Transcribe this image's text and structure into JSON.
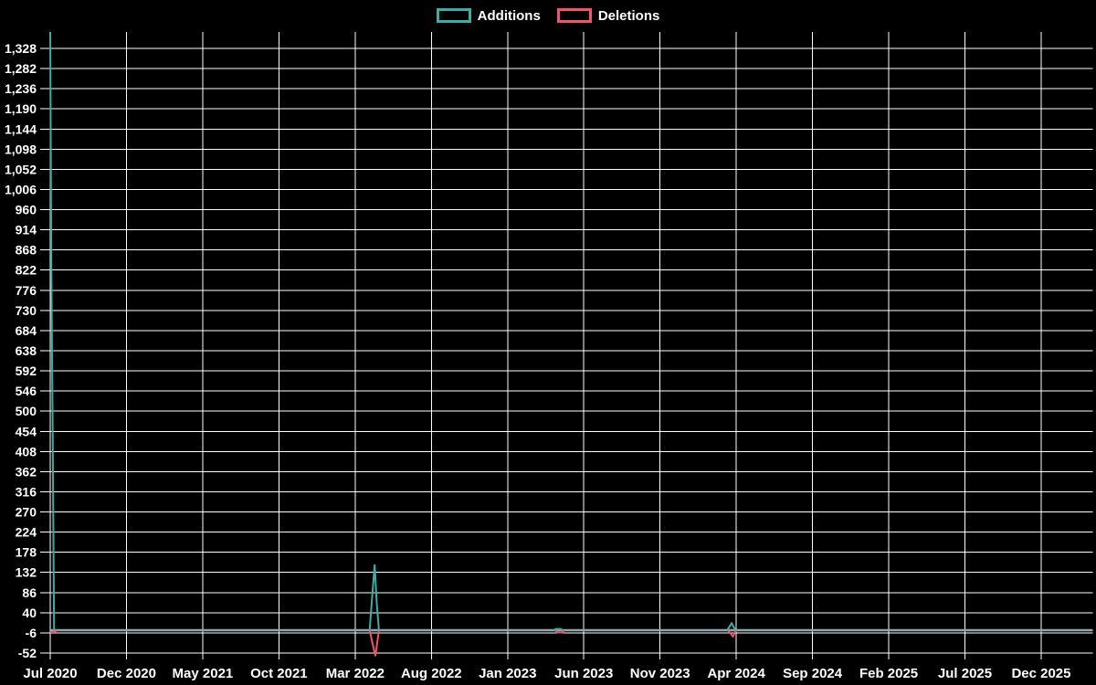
{
  "legend": {
    "entries": [
      {
        "label": "Additions",
        "color": "#3bada9"
      },
      {
        "label": "Deletions",
        "color": "#ee5569"
      }
    ]
  },
  "chart_data": {
    "type": "line",
    "title": "",
    "xlabel": "",
    "ylabel": "",
    "background_color": "#000000",
    "grid": true,
    "grid_color": "#ffffff",
    "text_color": "#ffffff",
    "legend_position": "top-center",
    "x_axis": {
      "unit": "months since Jul 2020",
      "tick_interval_months": 5,
      "xlim_months": [
        0,
        68.4
      ],
      "tick_labels": [
        "Jul 2020",
        "Dec 2020",
        "May 2021",
        "Oct 2021",
        "Mar 2022",
        "Aug 2022",
        "Jan 2023",
        "Jun 2023",
        "Nov 2023",
        "Apr 2024",
        "Sep 2024",
        "Feb 2025",
        "Jul 2025",
        "Dec 2025"
      ]
    },
    "y_axis": {
      "tick_min": -52,
      "tick_max": 1328,
      "tick_step": 46,
      "ylim": [
        -66,
        1365
      ],
      "tick_labels_top_to_bottom": [
        "1,328",
        "1,282",
        "1,236",
        "1,190",
        "1,144",
        "1,098",
        "1,052",
        "1,006",
        "960",
        "914",
        "868",
        "822",
        "776",
        "730",
        "684",
        "638",
        "592",
        "546",
        "500",
        "454",
        "408",
        "362",
        "316",
        "270",
        "224",
        "178",
        "132",
        "86",
        "40",
        "-6",
        "-52"
      ]
    },
    "zero_baseline": {
      "value": 0,
      "color": "#8fa9b2"
    },
    "series": [
      {
        "name": "Additions",
        "color": "#3bada9",
        "baseline_value": 0,
        "spike_segments": [
          [
            [
              0,
              1365
            ],
            [
              0.07,
              830
            ],
            [
              0.15,
              505
            ],
            [
              0.25,
              0
            ]
          ],
          [
            [
              20.95,
              0
            ],
            [
              21.28,
              150
            ],
            [
              21.42,
              62
            ],
            [
              21.56,
              0
            ]
          ],
          [
            [
              33.05,
              0
            ],
            [
              33.15,
              3
            ],
            [
              33.5,
              3
            ],
            [
              33.6,
              0
            ]
          ],
          [
            [
              44.4,
              0
            ],
            [
              44.7,
              16
            ],
            [
              44.95,
              0
            ]
          ]
        ]
      },
      {
        "name": "Deletions",
        "color": "#ee5569",
        "baseline_value": 0,
        "spike_segments": [
          [
            [
              0,
              -4
            ],
            [
              0.3,
              -4
            ],
            [
              0.45,
              0
            ]
          ],
          [
            [
              20.95,
              0
            ],
            [
              21.33,
              -59
            ],
            [
              21.56,
              0
            ]
          ],
          [
            [
              33.15,
              0
            ],
            [
              33.25,
              -5
            ],
            [
              33.6,
              -5
            ],
            [
              33.7,
              0
            ]
          ],
          [
            [
              44.45,
              0
            ],
            [
              44.78,
              -14
            ],
            [
              45.0,
              0
            ]
          ]
        ]
      }
    ]
  }
}
